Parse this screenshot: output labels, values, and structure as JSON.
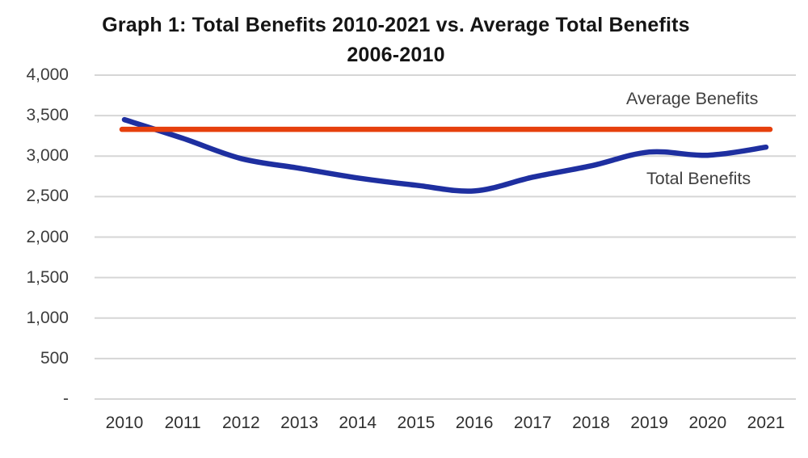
{
  "title": {
    "line1": "Graph 1: Total Benefits 2010-2021 vs. Average Total Benefits",
    "line2": "2006-2010"
  },
  "chart_data": {
    "type": "line",
    "categories": [
      "2010",
      "2011",
      "2012",
      "2013",
      "2014",
      "2015",
      "2016",
      "2017",
      "2018",
      "2019",
      "2020",
      "2021"
    ],
    "series": [
      {
        "name": "Total Benefits",
        "color": "#1e2fa0",
        "smooth": true,
        "values": [
          3450,
          3220,
          2970,
          2850,
          2730,
          2640,
          2570,
          2740,
          2880,
          3050,
          3010,
          3110
        ]
      },
      {
        "name": "Average Benefits",
        "color": "#e6400d",
        "smooth": false,
        "constant": 3330,
        "values": [
          3330,
          3330,
          3330,
          3330,
          3330,
          3330,
          3330,
          3330,
          3330,
          3330,
          3330,
          3330
        ]
      }
    ],
    "ylim": [
      0,
      4000
    ],
    "ytick_step": 500,
    "ytick_labels_top_first": [
      "4,000",
      "3,500",
      "3,000",
      "2,500",
      "2,000",
      "1,500",
      "1,000",
      "500",
      "-"
    ],
    "grid": "horizontal",
    "gridline_color": "#d6d6d6",
    "background": "#ffffff",
    "legend_position": "in-plot-text-labels"
  }
}
